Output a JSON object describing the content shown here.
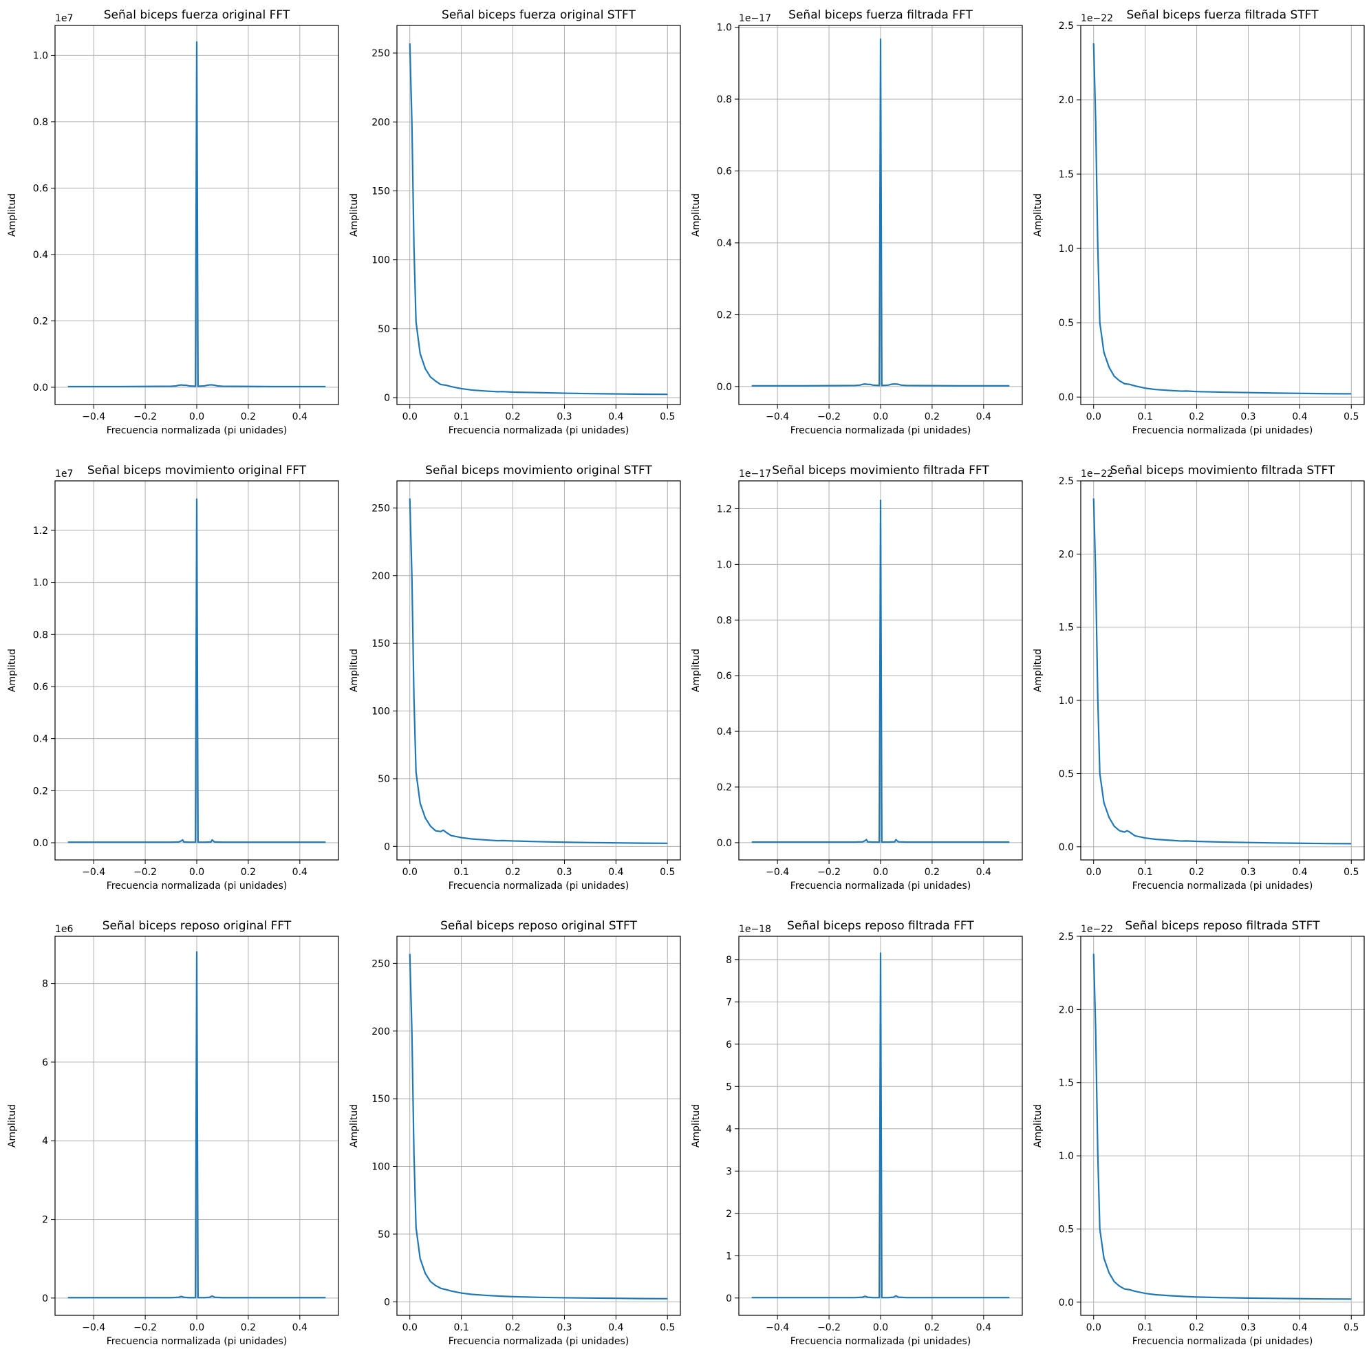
{
  "chart_data": [
    {
      "type": "line",
      "title": "Señal biceps fuerza original FFT",
      "xlabel": "Frecuencia normalizada (pi unidades)",
      "ylabel": "Amplitud",
      "offset_label": "1e7",
      "xlim": [
        -0.55,
        0.55
      ],
      "ylim": [
        -0.052,
        1.09
      ],
      "xticks": [
        -0.4,
        -0.2,
        0.0,
        0.2,
        0.4
      ],
      "xtick_labels": [
        "−0.4",
        "−0.2",
        "0.0",
        "0.2",
        "0.4"
      ],
      "yticks": [
        0,
        0.2,
        0.4,
        0.6,
        0.8,
        1.0
      ],
      "ytick_labels": [
        "0.0",
        "0.2",
        "0.4",
        "0.6",
        "0.8",
        "1.0"
      ],
      "grid": true,
      "series": [
        {
          "x": [
            -0.5,
            -0.3,
            -0.1,
            -0.08,
            -0.07,
            -0.06,
            -0.05,
            -0.04,
            -0.03,
            -0.005,
            0.0,
            0.005,
            0.03,
            0.04,
            0.05,
            0.06,
            0.07,
            0.08,
            0.1,
            0.3,
            0.5
          ],
          "y": [
            0.002,
            0.002,
            0.003,
            0.004,
            0.006,
            0.007,
            0.006,
            0.006,
            0.004,
            0.003,
            1.04,
            0.003,
            0.004,
            0.006,
            0.007,
            0.007,
            0.006,
            0.004,
            0.003,
            0.002,
            0.002
          ]
        }
      ]
    },
    {
      "type": "line",
      "title": "Señal biceps fuerza original STFT",
      "xlabel": "Frecuencia normalizada (pi unidades)",
      "ylabel": "Amplitud",
      "offset_label": "",
      "xlim": [
        -0.025,
        0.525
      ],
      "ylim": [
        -5,
        270
      ],
      "xticks": [
        0,
        0.1,
        0.2,
        0.3,
        0.4,
        0.5
      ],
      "xtick_labels": [
        "0.0",
        "0.1",
        "0.2",
        "0.3",
        "0.4",
        "0.5"
      ],
      "yticks": [
        0,
        50,
        100,
        150,
        200,
        250
      ],
      "ytick_labels": [
        "0",
        "50",
        "100",
        "150",
        "200",
        "250"
      ],
      "grid": true,
      "series": [
        {
          "x": [
            0.0,
            0.004,
            0.008,
            0.012,
            0.02,
            0.03,
            0.04,
            0.05,
            0.06,
            0.07,
            0.08,
            0.1,
            0.12,
            0.15,
            0.17,
            0.18,
            0.2,
            0.25,
            0.3,
            0.35,
            0.4,
            0.45,
            0.5
          ],
          "y": [
            257,
            200,
            110,
            55,
            32,
            21,
            15,
            12,
            9.5,
            9,
            8,
            6.5,
            5.5,
            4.7,
            4.3,
            4.4,
            4,
            3.6,
            3.2,
            2.9,
            2.7,
            2.5,
            2.4
          ]
        }
      ]
    },
    {
      "type": "line",
      "title": "Señal biceps fuerza filtrada FFT",
      "xlabel": "Frecuencia normalizada (pi unidades)",
      "ylabel": "Amplitud",
      "offset_label": "1e−17",
      "xlim": [
        -0.55,
        0.55
      ],
      "ylim": [
        -0.05,
        1.005
      ],
      "xticks": [
        -0.4,
        -0.2,
        0.0,
        0.2,
        0.4
      ],
      "xtick_labels": [
        "−0.4",
        "−0.2",
        "0.0",
        "0.2",
        "0.4"
      ],
      "yticks": [
        0,
        0.2,
        0.4,
        0.6,
        0.8,
        1.0
      ],
      "ytick_labels": [
        "0.0",
        "0.2",
        "0.4",
        "0.6",
        "0.8",
        "1.0"
      ],
      "grid": true,
      "series": [
        {
          "x": [
            -0.5,
            -0.3,
            -0.1,
            -0.08,
            -0.07,
            -0.06,
            -0.05,
            -0.04,
            -0.03,
            -0.005,
            0.0,
            0.005,
            0.03,
            0.04,
            0.05,
            0.06,
            0.07,
            0.08,
            0.1,
            0.3,
            0.5
          ],
          "y": [
            0.002,
            0.002,
            0.003,
            0.004,
            0.006,
            0.007,
            0.006,
            0.006,
            0.004,
            0.003,
            0.967,
            0.003,
            0.004,
            0.006,
            0.007,
            0.007,
            0.006,
            0.004,
            0.003,
            0.002,
            0.002
          ]
        }
      ]
    },
    {
      "type": "line",
      "title": "Señal biceps fuerza filtrada STFT",
      "xlabel": "Frecuencia normalizada (pi unidades)",
      "ylabel": "Amplitud",
      "offset_label": "1e−22",
      "xlim": [
        -0.025,
        0.525
      ],
      "ylim": [
        -0.05,
        2.5
      ],
      "xticks": [
        0,
        0.1,
        0.2,
        0.3,
        0.4,
        0.5
      ],
      "xtick_labels": [
        "0.0",
        "0.1",
        "0.2",
        "0.3",
        "0.4",
        "0.5"
      ],
      "yticks": [
        0,
        0.5,
        1.0,
        1.5,
        2.0,
        2.5
      ],
      "ytick_labels": [
        "0.0",
        "0.5",
        "1.0",
        "1.5",
        "2.0",
        "2.5"
      ],
      "grid": true,
      "series": [
        {
          "x": [
            0.0,
            0.004,
            0.008,
            0.012,
            0.02,
            0.03,
            0.04,
            0.05,
            0.06,
            0.07,
            0.08,
            0.1,
            0.12,
            0.15,
            0.17,
            0.18,
            0.2,
            0.25,
            0.3,
            0.35,
            0.4,
            0.45,
            0.5
          ],
          "y": [
            2.38,
            1.85,
            1.02,
            0.5,
            0.3,
            0.2,
            0.14,
            0.11,
            0.09,
            0.085,
            0.075,
            0.06,
            0.051,
            0.044,
            0.04,
            0.041,
            0.037,
            0.033,
            0.03,
            0.027,
            0.025,
            0.023,
            0.022
          ]
        }
      ]
    },
    {
      "type": "line",
      "title": "Señal biceps movimiento original FFT",
      "xlabel": "Frecuencia normalizada (pi unidades)",
      "ylabel": "Amplitud",
      "offset_label": "1e7",
      "xlim": [
        -0.55,
        0.55
      ],
      "ylim": [
        -0.066,
        1.39
      ],
      "xticks": [
        -0.4,
        -0.2,
        0.0,
        0.2,
        0.4
      ],
      "xtick_labels": [
        "−0.4",
        "−0.2",
        "0.0",
        "0.2",
        "0.4"
      ],
      "yticks": [
        0,
        0.2,
        0.4,
        0.6,
        0.8,
        1.0,
        1.2
      ],
      "ytick_labels": [
        "0.0",
        "0.2",
        "0.4",
        "0.6",
        "0.8",
        "1.0",
        "1.2"
      ],
      "grid": true,
      "series": [
        {
          "x": [
            -0.5,
            -0.3,
            -0.1,
            -0.07,
            -0.06,
            -0.055,
            -0.05,
            -0.03,
            -0.005,
            0.0,
            0.005,
            0.03,
            0.055,
            0.06,
            0.065,
            0.07,
            0.1,
            0.3,
            0.5
          ],
          "y": [
            0.002,
            0.002,
            0.002,
            0.003,
            0.007,
            0.011,
            0.003,
            0.002,
            0.002,
            1.32,
            0.002,
            0.002,
            0.003,
            0.011,
            0.006,
            0.003,
            0.002,
            0.002,
            0.002
          ]
        }
      ]
    },
    {
      "type": "line",
      "title": "Señal biceps movimiento original STFT",
      "xlabel": "Frecuencia normalizada (pi unidades)",
      "ylabel": "Amplitud",
      "offset_label": "",
      "xlim": [
        -0.025,
        0.525
      ],
      "ylim": [
        -10,
        270
      ],
      "xticks": [
        0,
        0.1,
        0.2,
        0.3,
        0.4,
        0.5
      ],
      "xtick_labels": [
        "0.0",
        "0.1",
        "0.2",
        "0.3",
        "0.4",
        "0.5"
      ],
      "yticks": [
        0,
        50,
        100,
        150,
        200,
        250
      ],
      "ytick_labels": [
        "0",
        "50",
        "100",
        "150",
        "200",
        "250"
      ],
      "grid": true,
      "series": [
        {
          "x": [
            0.0,
            0.004,
            0.008,
            0.012,
            0.02,
            0.03,
            0.04,
            0.05,
            0.06,
            0.065,
            0.07,
            0.08,
            0.1,
            0.12,
            0.15,
            0.17,
            0.18,
            0.2,
            0.25,
            0.3,
            0.35,
            0.4,
            0.45,
            0.5
          ],
          "y": [
            257,
            200,
            110,
            55,
            32,
            21,
            15,
            11.5,
            11,
            12,
            10.5,
            8,
            6.5,
            5.5,
            4.7,
            4.2,
            4.3,
            4,
            3.5,
            3.1,
            2.8,
            2.6,
            2.4,
            2.3
          ]
        }
      ]
    },
    {
      "type": "line",
      "title": "Señal biceps movimiento filtrada FFT",
      "xlabel": "Frecuencia normalizada (pi unidades)",
      "ylabel": "Amplitud",
      "offset_label": "1e−17",
      "xlim": [
        -0.55,
        0.55
      ],
      "ylim": [
        -0.062,
        1.3
      ],
      "xticks": [
        -0.4,
        -0.2,
        0.0,
        0.2,
        0.4
      ],
      "xtick_labels": [
        "−0.4",
        "−0.2",
        "0.0",
        "0.2",
        "0.4"
      ],
      "yticks": [
        0,
        0.2,
        0.4,
        0.6,
        0.8,
        1.0,
        1.2
      ],
      "ytick_labels": [
        "0.0",
        "0.2",
        "0.4",
        "0.6",
        "0.8",
        "1.0",
        "1.2"
      ],
      "grid": true,
      "series": [
        {
          "x": [
            -0.5,
            -0.3,
            -0.1,
            -0.07,
            -0.06,
            -0.055,
            -0.05,
            -0.03,
            -0.005,
            0.0,
            0.005,
            0.03,
            0.055,
            0.06,
            0.065,
            0.07,
            0.1,
            0.3,
            0.5
          ],
          "y": [
            0.002,
            0.002,
            0.002,
            0.003,
            0.007,
            0.011,
            0.003,
            0.002,
            0.002,
            1.23,
            0.002,
            0.002,
            0.003,
            0.011,
            0.006,
            0.003,
            0.002,
            0.002,
            0.002
          ]
        }
      ]
    },
    {
      "type": "line",
      "title": "Señal biceps movimiento filtrada STFT",
      "xlabel": "Frecuencia normalizada (pi unidades)",
      "ylabel": "Amplitud",
      "offset_label": "1e−22",
      "xlim": [
        -0.025,
        0.525
      ],
      "ylim": [
        -0.09,
        2.5
      ],
      "xticks": [
        0,
        0.1,
        0.2,
        0.3,
        0.4,
        0.5
      ],
      "xtick_labels": [
        "0.0",
        "0.1",
        "0.2",
        "0.3",
        "0.4",
        "0.5"
      ],
      "yticks": [
        0,
        0.5,
        1.0,
        1.5,
        2.0,
        2.5
      ],
      "ytick_labels": [
        "0.0",
        "0.5",
        "1.0",
        "1.5",
        "2.0",
        "2.5"
      ],
      "grid": true,
      "series": [
        {
          "x": [
            0.0,
            0.004,
            0.008,
            0.012,
            0.02,
            0.03,
            0.04,
            0.05,
            0.06,
            0.065,
            0.07,
            0.08,
            0.1,
            0.12,
            0.15,
            0.17,
            0.18,
            0.2,
            0.25,
            0.3,
            0.35,
            0.4,
            0.45,
            0.5
          ],
          "y": [
            2.38,
            1.85,
            1.02,
            0.5,
            0.3,
            0.2,
            0.14,
            0.11,
            0.1,
            0.11,
            0.1,
            0.075,
            0.06,
            0.051,
            0.044,
            0.039,
            0.04,
            0.037,
            0.032,
            0.029,
            0.026,
            0.024,
            0.022,
            0.021
          ]
        }
      ]
    },
    {
      "type": "line",
      "title": "Señal biceps reposo original FFT",
      "xlabel": "Frecuencia normalizada (pi unidades)",
      "ylabel": "Amplitud",
      "offset_label": "1e6",
      "xlim": [
        -0.55,
        0.55
      ],
      "ylim": [
        -0.44,
        9.2
      ],
      "xticks": [
        -0.4,
        -0.2,
        0.0,
        0.2,
        0.4
      ],
      "xtick_labels": [
        "−0.4",
        "−0.2",
        "0.0",
        "0.2",
        "0.4"
      ],
      "yticks": [
        0,
        2,
        4,
        6,
        8
      ],
      "ytick_labels": [
        "0",
        "2",
        "4",
        "6",
        "8"
      ],
      "grid": true,
      "series": [
        {
          "x": [
            -0.5,
            -0.3,
            -0.1,
            -0.07,
            -0.06,
            -0.05,
            -0.03,
            -0.005,
            0.0,
            0.005,
            0.03,
            0.05,
            0.06,
            0.07,
            0.1,
            0.3,
            0.5
          ],
          "y": [
            0.01,
            0.01,
            0.01,
            0.02,
            0.04,
            0.02,
            0.01,
            0.01,
            8.8,
            0.01,
            0.01,
            0.02,
            0.05,
            0.02,
            0.01,
            0.01,
            0.01
          ]
        }
      ]
    },
    {
      "type": "line",
      "title": "Señal biceps reposo original STFT",
      "xlabel": "Frecuencia normalizada (pi unidades)",
      "ylabel": "Amplitud",
      "offset_label": "",
      "xlim": [
        -0.025,
        0.525
      ],
      "ylim": [
        -10,
        270
      ],
      "xticks": [
        0,
        0.1,
        0.2,
        0.3,
        0.4,
        0.5
      ],
      "xtick_labels": [
        "0.0",
        "0.1",
        "0.2",
        "0.3",
        "0.4",
        "0.5"
      ],
      "yticks": [
        0,
        50,
        100,
        150,
        200,
        250
      ],
      "ytick_labels": [
        "0",
        "50",
        "100",
        "150",
        "200",
        "250"
      ],
      "grid": true,
      "series": [
        {
          "x": [
            0.0,
            0.004,
            0.008,
            0.012,
            0.02,
            0.03,
            0.04,
            0.05,
            0.06,
            0.07,
            0.08,
            0.1,
            0.12,
            0.15,
            0.18,
            0.2,
            0.25,
            0.3,
            0.35,
            0.4,
            0.45,
            0.5
          ],
          "y": [
            257,
            200,
            110,
            55,
            32,
            21,
            15,
            12,
            10,
            9,
            8,
            6.5,
            5.5,
            4.7,
            4.1,
            3.8,
            3.3,
            3,
            2.8,
            2.6,
            2.4,
            2.3
          ]
        }
      ]
    },
    {
      "type": "line",
      "title": "Señal biceps reposo filtrada FFT",
      "xlabel": "Frecuencia normalizada (pi unidades)",
      "ylabel": "Amplitud",
      "offset_label": "1e−18",
      "xlim": [
        -0.55,
        0.55
      ],
      "ylim": [
        -0.41,
        8.55
      ],
      "xticks": [
        -0.4,
        -0.2,
        0.0,
        0.2,
        0.4
      ],
      "xtick_labels": [
        "−0.4",
        "−0.2",
        "0.0",
        "0.2",
        "0.4"
      ],
      "yticks": [
        0,
        1,
        2,
        3,
        4,
        5,
        6,
        7,
        8
      ],
      "ytick_labels": [
        "0",
        "1",
        "2",
        "3",
        "4",
        "5",
        "6",
        "7",
        "8"
      ],
      "grid": true,
      "series": [
        {
          "x": [
            -0.5,
            -0.3,
            -0.1,
            -0.07,
            -0.06,
            -0.05,
            -0.03,
            -0.005,
            0.0,
            0.005,
            0.03,
            0.05,
            0.06,
            0.07,
            0.1,
            0.3,
            0.5
          ],
          "y": [
            0.01,
            0.01,
            0.01,
            0.02,
            0.04,
            0.02,
            0.01,
            0.01,
            8.15,
            0.01,
            0.01,
            0.02,
            0.05,
            0.02,
            0.01,
            0.01,
            0.01
          ]
        }
      ]
    },
    {
      "type": "line",
      "title": "Señal biceps reposo filtrada STFT",
      "xlabel": "Frecuencia normalizada (pi unidades)",
      "ylabel": "Amplitud",
      "offset_label": "1e−22",
      "xlim": [
        -0.025,
        0.525
      ],
      "ylim": [
        -0.09,
        2.5
      ],
      "xticks": [
        0,
        0.1,
        0.2,
        0.3,
        0.4,
        0.5
      ],
      "xtick_labels": [
        "0.0",
        "0.1",
        "0.2",
        "0.3",
        "0.4",
        "0.5"
      ],
      "yticks": [
        0,
        0.5,
        1.0,
        1.5,
        2.0,
        2.5
      ],
      "ytick_labels": [
        "0.0",
        "0.5",
        "1.0",
        "1.5",
        "2.0",
        "2.5"
      ],
      "grid": true,
      "series": [
        {
          "x": [
            0.0,
            0.004,
            0.008,
            0.012,
            0.02,
            0.03,
            0.04,
            0.05,
            0.06,
            0.07,
            0.08,
            0.1,
            0.12,
            0.15,
            0.18,
            0.2,
            0.25,
            0.3,
            0.35,
            0.4,
            0.45,
            0.5
          ],
          "y": [
            2.38,
            1.85,
            1.02,
            0.5,
            0.3,
            0.2,
            0.14,
            0.11,
            0.09,
            0.085,
            0.075,
            0.06,
            0.051,
            0.044,
            0.038,
            0.035,
            0.031,
            0.028,
            0.026,
            0.024,
            0.022,
            0.021
          ]
        }
      ]
    }
  ]
}
